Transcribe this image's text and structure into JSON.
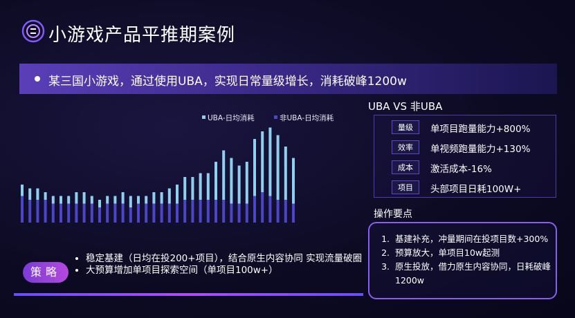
{
  "header": {
    "title": "小游戏产品平推期案例"
  },
  "banner": {
    "text": "某三国小游戏，通过使用UBA，实现日常量级增长，消耗破峰1200w"
  },
  "chart_data": {
    "type": "bar",
    "stacked": true,
    "legend_position": "top",
    "series": [
      {
        "name": "UBA-日均消耗",
        "color": "#8fd0f0",
        "values": [
          3,
          3,
          3,
          2,
          2,
          2,
          2,
          3,
          3,
          2,
          2,
          2,
          2,
          3,
          3,
          2,
          2,
          3,
          3,
          4,
          5,
          6,
          6,
          7,
          7,
          10,
          13,
          12,
          10,
          11,
          15,
          16,
          18,
          17,
          14,
          12
        ]
      },
      {
        "name": "非UBA-日均消耗",
        "color": "#4b45c8",
        "values": [
          7,
          6,
          6,
          6,
          5,
          5,
          5,
          5,
          5,
          5,
          4,
          5,
          5,
          5,
          4,
          5,
          5,
          5,
          5,
          5,
          5,
          6,
          6,
          6,
          6,
          6,
          6,
          5,
          5,
          5,
          7,
          8,
          7,
          6,
          6,
          5
        ]
      }
    ]
  },
  "strategy": {
    "badge": "策略",
    "items": [
      "稳定基建（日均在投200+项目），结合原生内容协同 实现流量破圈",
      "大预算增加单项目探索空间（单项目100w+）"
    ]
  },
  "comparison": {
    "title": "UBA VS 非UBA",
    "rows": [
      {
        "tag": "量级",
        "value": "单项目跑量能力+800%"
      },
      {
        "tag": "效率",
        "value": "单视频跑量能力+130%"
      },
      {
        "tag": "成本",
        "value": "激活成本-16%"
      },
      {
        "tag": "项目",
        "value": "头部项目日耗100W+"
      }
    ]
  },
  "operations": {
    "title": "操作要点",
    "items": [
      "基建补充，冲量期间在投项目数+300%",
      "预算放大，单项目10w起测",
      "原生投放，借力原生内容协同，日耗破峰1200w"
    ]
  }
}
